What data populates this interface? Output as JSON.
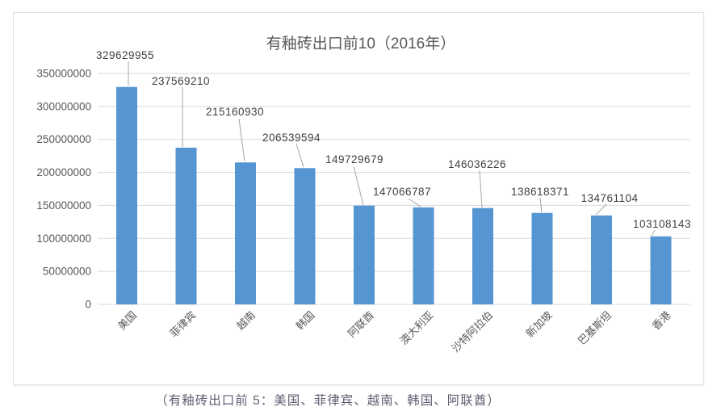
{
  "caption": "（有釉砖出口前 5：美国、菲律宾、越南、韩国、阿联酋）",
  "chart_data": {
    "type": "bar",
    "title": "有釉砖出口前10（2016年）",
    "categories": [
      "美国",
      "菲律宾",
      "越南",
      "韩国",
      "阿联酋",
      "澳大利亚",
      "沙特阿拉伯",
      "新加坡",
      "巴基斯坦",
      "香港"
    ],
    "values": [
      329629955,
      237569210,
      215160930,
      206539594,
      149729679,
      147066787,
      146036226,
      138618371,
      134761104,
      103108143
    ],
    "xlabel": "",
    "ylabel": "",
    "ylim": [
      0,
      350000000
    ],
    "ytick_step": 50000000,
    "yticks": [
      "0",
      "50000000",
      "100000000",
      "150000000",
      "200000000",
      "250000000",
      "300000000",
      "350000000"
    ],
    "grid": true,
    "legend": "none",
    "data_labels_shown": true,
    "colors": {
      "bar": "#5596D2",
      "gridline": "#d9d9d9",
      "axis_text": "#595959",
      "value_label_text": "#404040",
      "title_text": "#595959",
      "leader_line": "#a6a6a6",
      "caption_text": "#5e5e72",
      "chart_border": "#e2e2e2"
    }
  }
}
